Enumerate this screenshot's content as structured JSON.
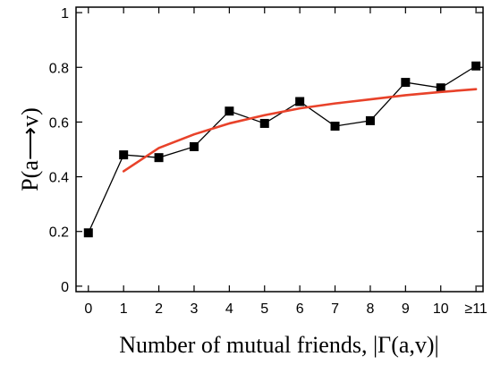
{
  "chart_data": {
    "type": "line",
    "xlabel": "Number of mutual friends, |Γ(a,v)|",
    "ylabel": "P(a⟶v)",
    "categories": [
      "0",
      "1",
      "2",
      "3",
      "4",
      "5",
      "6",
      "7",
      "8",
      "9",
      "10",
      "≥11"
    ],
    "x_values": [
      0,
      1,
      2,
      3,
      4,
      5,
      6,
      7,
      8,
      9,
      10,
      11
    ],
    "xlim": [
      -0.35,
      11.2
    ],
    "ylim": [
      -0.02,
      1.02
    ],
    "yticks": [
      0,
      0.2,
      0.4,
      0.6,
      0.8,
      1
    ],
    "ytick_labels": [
      "0",
      "0.2",
      "0.4",
      "0.6",
      "0.8",
      "1"
    ],
    "grid": false,
    "series": [
      {
        "kind": "line-markers",
        "color": "#000000",
        "marker": "square",
        "x": [
          0,
          1,
          2,
          3,
          4,
          5,
          6,
          7,
          8,
          9,
          10,
          11
        ],
        "values": [
          0.195,
          0.48,
          0.47,
          0.51,
          0.64,
          0.595,
          0.675,
          0.585,
          0.605,
          0.745,
          0.725,
          0.805
        ]
      },
      {
        "kind": "fit-curve",
        "color": "#e8422a",
        "x": [
          1,
          2,
          3,
          4,
          5,
          6,
          7,
          8,
          9,
          10,
          11
        ],
        "values": [
          0.42,
          0.505,
          0.555,
          0.595,
          0.625,
          0.65,
          0.668,
          0.683,
          0.698,
          0.71,
          0.72
        ]
      }
    ]
  }
}
